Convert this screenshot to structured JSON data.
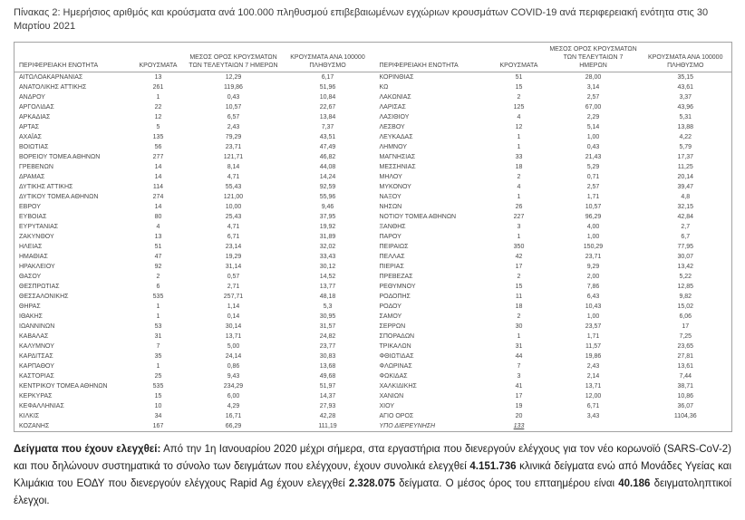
{
  "title": "Πίνακας 2: Ημερήσιος αριθμός και κρούσματα ανά 100.000 πληθυσμού επιβεβαιωμένων εγχώριων κρουσμάτων COVID-19 ανά περιφερειακή ενότητα στις 30 Μαρτίου 2021",
  "table": {
    "headers": {
      "region": "ΠΕΡΙΦΕΡΕΙΑΚΗ ΕΝΟΤΗΤΑ",
      "cases": "ΚΡΟΥΣΜΑΤΑ",
      "avg7": "ΜΕΣΟΣ ΟΡΟΣ ΚΡΟΥΣΜΑΤΩΝ ΤΩΝ ΤΕΛΕΥΤΑΙΩΝ 7 ΗΜΕΡΩΝ",
      "per100k": "ΚΡΟΥΣΜΑΤΑ ΑΝΑ 100000 ΠΛΗΘΥΣΜΟ"
    },
    "left_rows": [
      [
        "ΑΙΤΩΛΟΑΚΑΡΝΑΝΙΑΣ",
        "13",
        "12,29",
        "6,17"
      ],
      [
        "ΑΝΑΤΟΛΙΚΗΣ ΑΤΤΙΚΗΣ",
        "261",
        "119,86",
        "51,96"
      ],
      [
        "ΑΝΔΡΟΥ",
        "1",
        "0,43",
        "10,84"
      ],
      [
        "ΑΡΓΟΛΙΔΑΣ",
        "22",
        "10,57",
        "22,67"
      ],
      [
        "ΑΡΚΑΔΙΑΣ",
        "12",
        "6,57",
        "13,84"
      ],
      [
        "ΑΡΤΑΣ",
        "5",
        "2,43",
        "7,37"
      ],
      [
        "ΑΧΑΪΑΣ",
        "135",
        "79,29",
        "43,51"
      ],
      [
        "ΒΟΙΩΤΙΑΣ",
        "56",
        "23,71",
        "47,49"
      ],
      [
        "ΒΟΡΕΙΟΥ ΤΟΜΕΑ ΑΘΗΝΩΝ",
        "277",
        "121,71",
        "46,82"
      ],
      [
        "ΓΡΕΒΕΝΩΝ",
        "14",
        "8,14",
        "44,08"
      ],
      [
        "ΔΡΑΜΑΣ",
        "14",
        "4,71",
        "14,24"
      ],
      [
        "ΔΥΤΙΚΗΣ ΑΤΤΙΚΗΣ",
        "114",
        "55,43",
        "92,59"
      ],
      [
        "ΔΥΤΙΚΟΥ ΤΟΜΕΑ ΑΘΗΝΩΝ",
        "274",
        "121,00",
        "55,96"
      ],
      [
        "ΕΒΡΟΥ",
        "14",
        "10,00",
        "9,46"
      ],
      [
        "ΕΥΒΟΙΑΣ",
        "80",
        "25,43",
        "37,95"
      ],
      [
        "ΕΥΡΥΤΑΝΙΑΣ",
        "4",
        "4,71",
        "19,92"
      ],
      [
        "ΖΑΚΥΝΘΟΥ",
        "13",
        "6,71",
        "31,89"
      ],
      [
        "ΗΛΕΙΑΣ",
        "51",
        "23,14",
        "32,02"
      ],
      [
        "ΗΜΑΘΙΑΣ",
        "47",
        "19,29",
        "33,43"
      ],
      [
        "ΗΡΑΚΛΕΙΟΥ",
        "92",
        "31,14",
        "30,12"
      ],
      [
        "ΘΑΣΟΥ",
        "2",
        "0,57",
        "14,52"
      ],
      [
        "ΘΕΣΠΡΩΤΙΑΣ",
        "6",
        "2,71",
        "13,77"
      ],
      [
        "ΘΕΣΣΑΛΟΝΙΚΗΣ",
        "535",
        "257,71",
        "48,18"
      ],
      [
        "ΘΗΡΑΣ",
        "1",
        "1,14",
        "5,3"
      ],
      [
        "ΙΘΑΚΗΣ",
        "1",
        "0,14",
        "30,95"
      ],
      [
        "ΙΩΑΝΝΙΝΩΝ",
        "53",
        "30,14",
        "31,57"
      ],
      [
        "ΚΑΒΑΛΑΣ",
        "31",
        "13,71",
        "24,82"
      ],
      [
        "ΚΑΛΥΜΝΟΥ",
        "7",
        "5,00",
        "23,77"
      ],
      [
        "ΚΑΡΔΙΤΣΑΣ",
        "35",
        "24,14",
        "30,83"
      ],
      [
        "ΚΑΡΠΑΘΟΥ",
        "1",
        "0,86",
        "13,68"
      ],
      [
        "ΚΑΣΤΟΡΙΑΣ",
        "25",
        "9,43",
        "49,68"
      ],
      [
        "ΚΕΝΤΡΙΚΟΥ ΤΟΜΕΑ ΑΘΗΝΩΝ",
        "535",
        "234,29",
        "51,97"
      ],
      [
        "ΚΕΡΚΥΡΑΣ",
        "15",
        "6,00",
        "14,37"
      ],
      [
        "ΚΕΦΑΛΛΗΝΙΑΣ",
        "10",
        "4,29",
        "27,93"
      ],
      [
        "ΚΙΛΚΙΣ",
        "34",
        "16,71",
        "42,28"
      ],
      [
        "ΚΟΖΑΝΗΣ",
        "167",
        "66,29",
        "111,19"
      ]
    ],
    "right_rows": [
      [
        "ΚΟΡΙΝΘΙΑΣ",
        "51",
        "28,00",
        "35,15"
      ],
      [
        "ΚΩ",
        "15",
        "3,14",
        "43,61"
      ],
      [
        "ΛΑΚΩΝΙΑΣ",
        "2",
        "2,57",
        "3,37"
      ],
      [
        "ΛΑΡΙΣΑΣ",
        "125",
        "67,00",
        "43,96"
      ],
      [
        "ΛΑΣΙΘΙΟΥ",
        "4",
        "2,29",
        "5,31"
      ],
      [
        "ΛΕΣΒΟΥ",
        "12",
        "5,14",
        "13,88"
      ],
      [
        "ΛΕΥΚΑΔΑΣ",
        "1",
        "1,00",
        "4,22"
      ],
      [
        "ΛΗΜΝΟΥ",
        "1",
        "0,43",
        "5,79"
      ],
      [
        "ΜΑΓΝΗΣΙΑΣ",
        "33",
        "21,43",
        "17,37"
      ],
      [
        "ΜΕΣΣΗΝΙΑΣ",
        "18",
        "5,29",
        "11,25"
      ],
      [
        "ΜΗΛΟΥ",
        "2",
        "0,71",
        "20,14"
      ],
      [
        "ΜΥΚΟΝΟΥ",
        "4",
        "2,57",
        "39,47"
      ],
      [
        "ΝΑΞΟΥ",
        "1",
        "1,71",
        "4,8"
      ],
      [
        "ΝΗΣΩΝ",
        "26",
        "10,57",
        "32,15"
      ],
      [
        "ΝΟΤΙΟΥ ΤΟΜΕΑ ΑΘΗΝΩΝ",
        "227",
        "96,29",
        "42,84"
      ],
      [
        "ΞΑΝΘΗΣ",
        "3",
        "4,00",
        "2,7"
      ],
      [
        "ΠΑΡΟΥ",
        "1",
        "1,00",
        "6,7"
      ],
      [
        "ΠΕΙΡΑΙΩΣ",
        "350",
        "150,29",
        "77,95"
      ],
      [
        "ΠΕΛΛΑΣ",
        "42",
        "23,71",
        "30,07"
      ],
      [
        "ΠΙΕΡΙΑΣ",
        "17",
        "9,29",
        "13,42"
      ],
      [
        "ΠΡΕΒΕΖΑΣ",
        "2",
        "2,00",
        "5,22"
      ],
      [
        "ΡΕΘΥΜΝΟΥ",
        "15",
        "7,86",
        "12,85"
      ],
      [
        "ΡΟΔΟΠΗΣ",
        "11",
        "6,43",
        "9,82"
      ],
      [
        "ΡΟΔΟΥ",
        "18",
        "10,43",
        "15,02"
      ],
      [
        "ΣΑΜΟΥ",
        "2",
        "1,00",
        "6,06"
      ],
      [
        "ΣΕΡΡΩΝ",
        "30",
        "23,57",
        "17"
      ],
      [
        "ΣΠΟΡΑΔΩΝ",
        "1",
        "1,71",
        "7,25"
      ],
      [
        "ΤΡΙΚΑΛΩΝ",
        "31",
        "11,57",
        "23,65"
      ],
      [
        "ΦΘΙΩΤΙΔΑΣ",
        "44",
        "19,86",
        "27,81"
      ],
      [
        "ΦΛΩΡΙΝΑΣ",
        "7",
        "2,43",
        "13,61"
      ],
      [
        "ΦΩΚΙΔΑΣ",
        "3",
        "2,14",
        "7,44"
      ],
      [
        "ΧΑΛΚΙΔΙΚΗΣ",
        "41",
        "13,71",
        "38,71"
      ],
      [
        "ΧΑΝΙΩΝ",
        "17",
        "12,00",
        "10,86"
      ],
      [
        "ΧΙΟΥ",
        "19",
        "6,71",
        "36,07"
      ],
      [
        "ΑΓΙΟ ΟΡΟΣ",
        "20",
        "3,43",
        "1104,36"
      ],
      [
        "ΥΠΟ ΔΙΕΡΕΥΝΗΣΗ",
        "133",
        "",
        ""
      ]
    ]
  },
  "footer": {
    "segments": [
      {
        "text": "Δείγματα που έχουν ελεγχθεί:",
        "bold": true
      },
      {
        "text": " Από την 1η Ιανουαρίου 2020 μέχρι σήμερα, στα εργαστήρια που διενεργούν ελέγχους για τον νέο κορωνοϊό (SARS-CoV-2) και που δηλώνουν συστηματικά το σύνολο των δειγμάτων που ελέγχουν, έχουν συνολικά ελεγχθεί ",
        "bold": false
      },
      {
        "text": "4.151.736",
        "bold": true
      },
      {
        "text": " κλινικά δείγματα ενώ από Μονάδες Υγείας και Κλιμάκια του ΕΟΔΥ που διενεργούν ελέγχους Rapid Ag έχουν ελεγχθεί ",
        "bold": false
      },
      {
        "text": "2.328.075",
        "bold": true
      },
      {
        "text": " δείγματα. Ο μέσος όρος του επταημέρου είναι ",
        "bold": false
      },
      {
        "text": "40.186",
        "bold": true
      },
      {
        "text": " δειγματοληπτικοί έλεγχοι.",
        "bold": false
      }
    ]
  }
}
